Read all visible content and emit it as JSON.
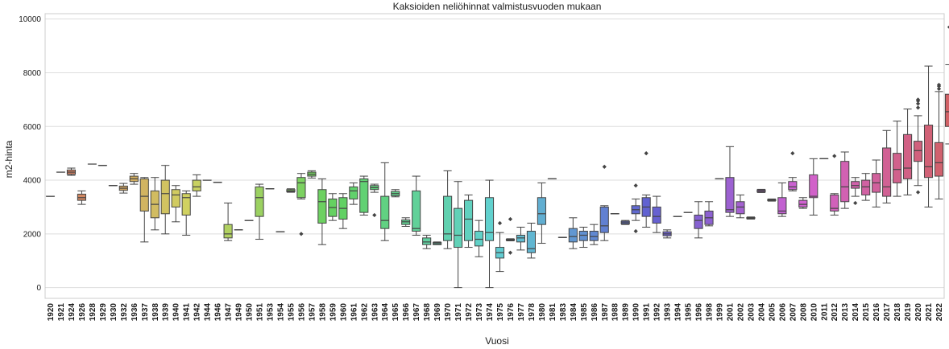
{
  "chart_data": {
    "type": "box",
    "title": "Kaksioiden neliöhinnat valmistusvuoden mukaan",
    "xlabel": "Vuosi",
    "ylabel": "m2-hinta",
    "ylim": [
      -400,
      10200
    ],
    "yticks": [
      0,
      2000,
      4000,
      6000,
      8000,
      10000
    ],
    "grid": "horizontal",
    "categories": [
      "1920",
      "1921",
      "1924",
      "1926",
      "1928",
      "1929",
      "1930",
      "1932",
      "1936",
      "1937",
      "1938",
      "1939",
      "1940",
      "1941",
      "1942",
      "1944",
      "1946",
      "1947",
      "1949",
      "1950",
      "1951",
      "1953",
      "1954",
      "1955",
      "1956",
      "1957",
      "1958",
      "1959",
      "1960",
      "1961",
      "1962",
      "1963",
      "1964",
      "1965",
      "1966",
      "1967",
      "1968",
      "1969",
      "1970",
      "1971",
      "1972",
      "1973",
      "1974",
      "1975",
      "1976",
      "1977",
      "1978",
      "1980",
      "1981",
      "1983",
      "1984",
      "1985",
      "1986",
      "1987",
      "1988",
      "1989",
      "1990",
      "1991",
      "1992",
      "1993",
      "1994",
      "1995",
      "1996",
      "1998",
      "1999",
      "2001",
      "2002",
      "2003",
      "2004",
      "2005",
      "2006",
      "2007",
      "2008",
      "2010",
      "2011",
      "2012",
      "2013",
      "2014",
      "2015",
      "2016",
      "2017",
      "2018",
      "2019",
      "2020",
      "2021",
      "2022"
    ],
    "boxes": [
      {
        "q1": 3400,
        "med": 3400,
        "q3": 3400,
        "lo": 3400,
        "hi": 3400,
        "out": []
      },
      {
        "q1": 4300,
        "med": 4300,
        "q3": 4300,
        "lo": 4300,
        "hi": 4300,
        "out": []
      },
      {
        "q1": 4220,
        "med": 4300,
        "q3": 4380,
        "lo": 4180,
        "hi": 4450,
        "out": []
      },
      {
        "q1": 3250,
        "med": 3350,
        "q3": 3480,
        "lo": 3100,
        "hi": 3600,
        "out": []
      },
      {
        "q1": 4600,
        "med": 4600,
        "q3": 4600,
        "lo": 4600,
        "hi": 4600,
        "out": []
      },
      {
        "q1": 4550,
        "med": 4550,
        "q3": 4550,
        "lo": 4550,
        "hi": 4550,
        "out": []
      },
      {
        "q1": 3800,
        "med": 3800,
        "q3": 3800,
        "lo": 3800,
        "hi": 3800,
        "out": []
      },
      {
        "q1": 3620,
        "med": 3700,
        "q3": 3780,
        "lo": 3520,
        "hi": 3880,
        "out": []
      },
      {
        "q1": 3950,
        "med": 4050,
        "q3": 4150,
        "lo": 3850,
        "hi": 4250,
        "out": []
      },
      {
        "q1": 2850,
        "med": 3400,
        "q3": 4050,
        "lo": 1700,
        "hi": 4100,
        "out": []
      },
      {
        "q1": 2600,
        "med": 3100,
        "q3": 3600,
        "lo": 2150,
        "hi": 4100,
        "out": []
      },
      {
        "q1": 2750,
        "med": 3500,
        "q3": 4000,
        "lo": 2000,
        "hi": 4550,
        "out": []
      },
      {
        "q1": 3000,
        "med": 3450,
        "q3": 3650,
        "lo": 2450,
        "hi": 3800,
        "out": []
      },
      {
        "q1": 2700,
        "med": 3350,
        "q3": 3500,
        "lo": 1950,
        "hi": 3600,
        "out": []
      },
      {
        "q1": 3600,
        "med": 3750,
        "q3": 4000,
        "lo": 3400,
        "hi": 4200,
        "out": []
      },
      {
        "q1": 4000,
        "med": 4000,
        "q3": 4000,
        "lo": 4000,
        "hi": 4000,
        "out": []
      },
      {
        "q1": 3920,
        "med": 3920,
        "q3": 3920,
        "lo": 3920,
        "hi": 3920,
        "out": []
      },
      {
        "q1": 1850,
        "med": 2000,
        "q3": 2350,
        "lo": 1750,
        "hi": 3150,
        "out": []
      },
      {
        "q1": 2150,
        "med": 2150,
        "q3": 2150,
        "lo": 2150,
        "hi": 2150,
        "out": []
      },
      {
        "q1": 2500,
        "med": 2500,
        "q3": 2500,
        "lo": 2500,
        "hi": 2500,
        "out": []
      },
      {
        "q1": 2650,
        "med": 3350,
        "q3": 3750,
        "lo": 1800,
        "hi": 3850,
        "out": []
      },
      {
        "q1": 3680,
        "med": 3680,
        "q3": 3680,
        "lo": 3680,
        "hi": 3680,
        "out": []
      },
      {
        "q1": 2080,
        "med": 2080,
        "q3": 2080,
        "lo": 2080,
        "hi": 2080,
        "out": []
      },
      {
        "q1": 3570,
        "med": 3600,
        "q3": 3650,
        "lo": 3550,
        "hi": 3680,
        "out": []
      },
      {
        "q1": 3350,
        "med": 3900,
        "q3": 4100,
        "lo": 3300,
        "hi": 4250,
        "out": [
          2000
        ]
      },
      {
        "q1": 4150,
        "med": 4220,
        "q3": 4300,
        "lo": 4080,
        "hi": 4350,
        "out": []
      },
      {
        "q1": 2400,
        "med": 3200,
        "q3": 3650,
        "lo": 1600,
        "hi": 4050,
        "out": []
      },
      {
        "q1": 2650,
        "med": 2980,
        "q3": 3300,
        "lo": 2500,
        "hi": 3500,
        "out": []
      },
      {
        "q1": 2550,
        "med": 2950,
        "q3": 3350,
        "lo": 2200,
        "hi": 3500,
        "out": []
      },
      {
        "q1": 3300,
        "med": 3600,
        "q3": 3750,
        "lo": 3100,
        "hi": 3900,
        "out": []
      },
      {
        "q1": 2800,
        "med": 3950,
        "q3": 4050,
        "lo": 2700,
        "hi": 4150,
        "out": []
      },
      {
        "q1": 3650,
        "med": 3720,
        "q3": 3800,
        "lo": 3550,
        "hi": 3850,
        "out": [
          2700
        ]
      },
      {
        "q1": 2200,
        "med": 2500,
        "q3": 3400,
        "lo": 1750,
        "hi": 4650,
        "out": []
      },
      {
        "q1": 3420,
        "med": 3500,
        "q3": 3580,
        "lo": 3380,
        "hi": 3650,
        "out": []
      },
      {
        "q1": 2350,
        "med": 2450,
        "q3": 2520,
        "lo": 2280,
        "hi": 2600,
        "out": []
      },
      {
        "q1": 2100,
        "med": 2200,
        "q3": 3600,
        "lo": 1950,
        "hi": 4150,
        "out": []
      },
      {
        "q1": 1600,
        "med": 1700,
        "q3": 1850,
        "lo": 1450,
        "hi": 1950,
        "out": []
      },
      {
        "q1": 1600,
        "med": 1640,
        "q3": 1680,
        "lo": 1600,
        "hi": 1700,
        "out": []
      },
      {
        "q1": 1750,
        "med": 2000,
        "q3": 3400,
        "lo": 1450,
        "hi": 4350,
        "out": []
      },
      {
        "q1": 1500,
        "med": 1950,
        "q3": 2950,
        "lo": 0,
        "hi": 3950,
        "out": []
      },
      {
        "q1": 1750,
        "med": 2550,
        "q3": 3250,
        "lo": 1500,
        "hi": 3450,
        "out": []
      },
      {
        "q1": 1550,
        "med": 1800,
        "q3": 2100,
        "lo": 1150,
        "hi": 2500,
        "out": []
      },
      {
        "q1": 1750,
        "med": 2050,
        "q3": 3350,
        "lo": 0,
        "hi": 4000,
        "out": []
      },
      {
        "q1": 1100,
        "med": 1300,
        "q3": 1500,
        "lo": 600,
        "hi": 2050,
        "out": [
          2400
        ]
      },
      {
        "q1": 1760,
        "med": 1780,
        "q3": 1800,
        "lo": 1740,
        "hi": 1820,
        "out": [
          2550,
          1300
        ]
      },
      {
        "q1": 1700,
        "med": 1850,
        "q3": 1950,
        "lo": 1400,
        "hi": 2250,
        "out": []
      },
      {
        "q1": 1300,
        "med": 1450,
        "q3": 2100,
        "lo": 1100,
        "hi": 2400,
        "out": []
      },
      {
        "q1": 2350,
        "med": 2750,
        "q3": 3350,
        "lo": 1650,
        "hi": 3900,
        "out": []
      },
      {
        "q1": 4050,
        "med": 4050,
        "q3": 4050,
        "lo": 4050,
        "hi": 4050,
        "out": []
      },
      {
        "q1": 1870,
        "med": 1870,
        "q3": 1870,
        "lo": 1870,
        "hi": 1870,
        "out": []
      },
      {
        "q1": 1700,
        "med": 1900,
        "q3": 2200,
        "lo": 1450,
        "hi": 2600,
        "out": []
      },
      {
        "q1": 1750,
        "med": 1950,
        "q3": 2100,
        "lo": 1500,
        "hi": 2250,
        "out": []
      },
      {
        "q1": 1750,
        "med": 1900,
        "q3": 2100,
        "lo": 1600,
        "hi": 2350,
        "out": []
      },
      {
        "q1": 2050,
        "med": 2300,
        "q3": 3000,
        "lo": 1750,
        "hi": 3050,
        "out": [
          4500
        ]
      },
      {
        "q1": 2750,
        "med": 2750,
        "q3": 2750,
        "lo": 2750,
        "hi": 2750,
        "out": []
      },
      {
        "q1": 2370,
        "med": 2420,
        "q3": 2470,
        "lo": 2350,
        "hi": 2500,
        "out": []
      },
      {
        "q1": 2750,
        "med": 2900,
        "q3": 3050,
        "lo": 2500,
        "hi": 3300,
        "out": [
          3800,
          2100
        ]
      },
      {
        "q1": 2650,
        "med": 3000,
        "q3": 3350,
        "lo": 2250,
        "hi": 3450,
        "out": [
          5000
        ]
      },
      {
        "q1": 2400,
        "med": 2650,
        "q3": 3000,
        "lo": 2050,
        "hi": 3400,
        "out": []
      },
      {
        "q1": 1930,
        "med": 2000,
        "q3": 2080,
        "lo": 1850,
        "hi": 2150,
        "out": []
      },
      {
        "q1": 2650,
        "med": 2650,
        "q3": 2650,
        "lo": 2650,
        "hi": 2650,
        "out": []
      },
      {
        "q1": 2800,
        "med": 2800,
        "q3": 2800,
        "lo": 2800,
        "hi": 2800,
        "out": []
      },
      {
        "q1": 2200,
        "med": 2500,
        "q3": 2700,
        "lo": 1850,
        "hi": 3200,
        "out": []
      },
      {
        "q1": 2350,
        "med": 2600,
        "q3": 2850,
        "lo": 2300,
        "hi": 3200,
        "out": []
      },
      {
        "q1": 4050,
        "med": 4050,
        "q3": 4050,
        "lo": 4050,
        "hi": 4050,
        "out": []
      },
      {
        "q1": 2800,
        "med": 2900,
        "q3": 4100,
        "lo": 2650,
        "hi": 5250,
        "out": []
      },
      {
        "q1": 2750,
        "med": 3000,
        "q3": 3200,
        "lo": 2600,
        "hi": 3450,
        "out": []
      },
      {
        "q1": 2570,
        "med": 2590,
        "q3": 2610,
        "lo": 2550,
        "hi": 2630,
        "out": []
      },
      {
        "q1": 3560,
        "med": 3600,
        "q3": 3640,
        "lo": 3540,
        "hi": 3660,
        "out": []
      },
      {
        "q1": 3240,
        "med": 3260,
        "q3": 3280,
        "lo": 3220,
        "hi": 3300,
        "out": []
      },
      {
        "q1": 2750,
        "med": 2850,
        "q3": 3350,
        "lo": 2650,
        "hi": 3900,
        "out": []
      },
      {
        "q1": 3650,
        "med": 3750,
        "q3": 3950,
        "lo": 3600,
        "hi": 4100,
        "out": [
          5000
        ]
      },
      {
        "q1": 3000,
        "med": 3100,
        "q3": 3250,
        "lo": 2950,
        "hi": 3350,
        "out": []
      },
      {
        "q1": 3350,
        "med": 3400,
        "q3": 4200,
        "lo": 2700,
        "hi": 4800,
        "out": []
      },
      {
        "q1": 4800,
        "med": 4800,
        "q3": 4800,
        "lo": 4800,
        "hi": 4800,
        "out": []
      },
      {
        "q1": 2850,
        "med": 2950,
        "q3": 3450,
        "lo": 2700,
        "hi": 3500,
        "out": [
          4900
        ]
      },
      {
        "q1": 3200,
        "med": 3750,
        "q3": 4700,
        "lo": 2950,
        "hi": 5050,
        "out": []
      },
      {
        "q1": 3700,
        "med": 3800,
        "q3": 3950,
        "lo": 3400,
        "hi": 4100,
        "out": [
          3150
        ]
      },
      {
        "q1": 3450,
        "med": 3750,
        "q3": 4000,
        "lo": 3250,
        "hi": 4250,
        "out": []
      },
      {
        "q1": 3550,
        "med": 3900,
        "q3": 4250,
        "lo": 3000,
        "hi": 4750,
        "out": []
      },
      {
        "q1": 3400,
        "med": 3750,
        "q3": 5200,
        "lo": 3150,
        "hi": 5850,
        "out": []
      },
      {
        "q1": 3900,
        "med": 4400,
        "q3": 5000,
        "lo": 3400,
        "hi": 6200,
        "out": []
      },
      {
        "q1": 4050,
        "med": 4450,
        "q3": 5700,
        "lo": 3450,
        "hi": 6650,
        "out": []
      },
      {
        "q1": 4700,
        "med": 5100,
        "q3": 5450,
        "lo": 3800,
        "hi": 6400,
        "out": [
          3550,
          6700,
          6850,
          6950,
          7000
        ]
      },
      {
        "q1": 4100,
        "med": 4500,
        "q3": 6050,
        "lo": 3000,
        "hi": 8250,
        "out": []
      },
      {
        "q1": 4150,
        "med": 4650,
        "q3": 5400,
        "lo": 3300,
        "hi": 7300,
        "out": [
          7400,
          7500,
          7550
        ]
      },
      {
        "q1": 6000,
        "med": 6550,
        "q3": 7200,
        "lo": 5350,
        "hi": 8300,
        "out": [
          9700
        ]
      }
    ]
  }
}
